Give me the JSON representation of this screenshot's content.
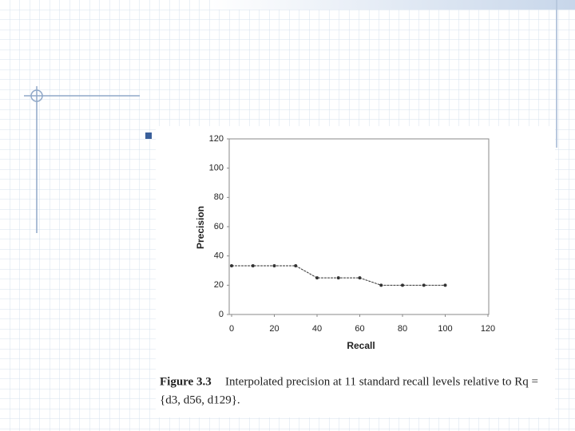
{
  "chart_data": {
    "type": "line",
    "x_label": "Recall",
    "y_label": "Precision",
    "x": [
      0,
      10,
      20,
      30,
      40,
      50,
      60,
      70,
      80,
      90,
      100
    ],
    "series": [
      {
        "name": "Interpolated precision",
        "color": "#333333",
        "values": [
          33.3,
          33.3,
          33.3,
          33.3,
          25,
          25,
          25,
          20,
          20,
          20,
          20
        ]
      }
    ],
    "xlim": [
      0,
      120
    ],
    "xticks": [
      0,
      20,
      40,
      60,
      80,
      100,
      120
    ],
    "ylim": [
      0,
      120
    ],
    "yticks": [
      0,
      20,
      40,
      60,
      80,
      100,
      120
    ],
    "grid": false,
    "caption_label": "Figure 3.3",
    "caption_line1": "Interpolated precision at 11 standard recall levels relative to Rq =",
    "caption_line2": "{d3, d56, d129}."
  }
}
